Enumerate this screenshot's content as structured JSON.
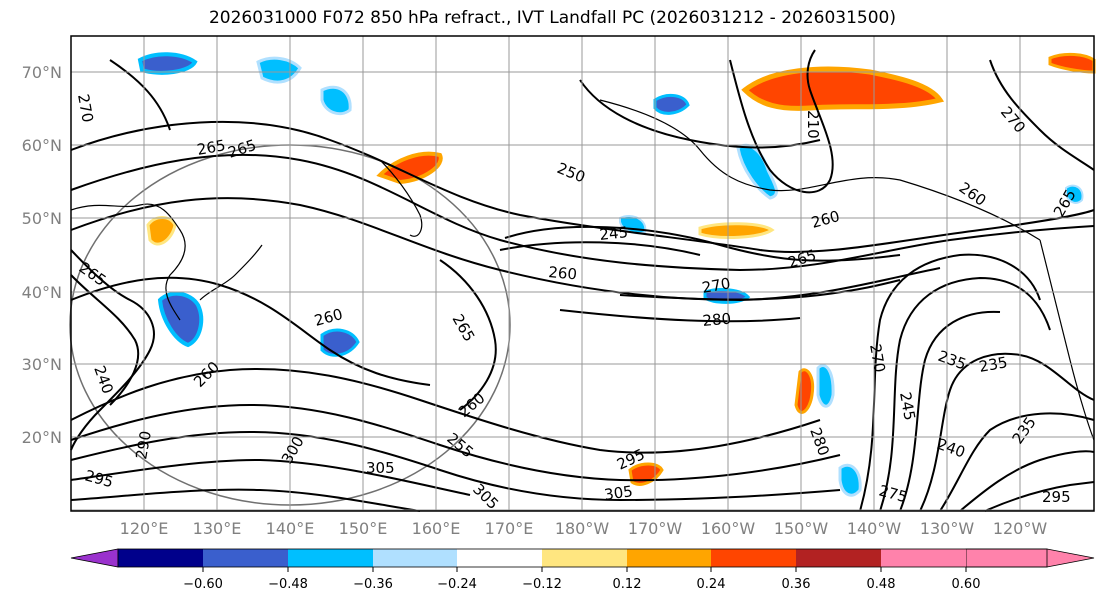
{
  "title": "2026031000 F072 850 hPa refract., IVT Landfall PC (2026031212 - 2026031500)",
  "lat_labels": [
    "70°N",
    "60°N",
    "50°N",
    "40°N",
    "30°N",
    "20°N"
  ],
  "lon_labels": [
    "120°E",
    "130°E",
    "140°E",
    "150°E",
    "160°E",
    "170°E",
    "180°W",
    "170°W",
    "160°W",
    "150°W",
    "140°W",
    "130°W",
    "120°W"
  ],
  "contour_labels": [
    "270",
    "265",
    "265",
    "250",
    "245",
    "260",
    "265",
    "260",
    "270",
    "280",
    "265",
    "265",
    "260",
    "260",
    "240",
    "260",
    "255",
    "300",
    "305",
    "305",
    "295",
    "305",
    "280",
    "270",
    "245",
    "235",
    "235",
    "240",
    "235",
    "275",
    "295",
    "295",
    "290",
    "260",
    "265",
    "270",
    "210"
  ],
  "colorbar": {
    "ticks": [
      "−0.60",
      "−0.48",
      "−0.36",
      "−0.24",
      "−0.12",
      "0.12",
      "0.24",
      "0.36",
      "0.48",
      "0.60"
    ],
    "colors": [
      "#9a32cd",
      "#00008b",
      "#3a5fcd",
      "#00bfff",
      "#b0e0ff",
      "#ffffff",
      "#ffe680",
      "#ffa500",
      "#ff4500",
      "#b22222",
      "#ff82ab"
    ]
  }
}
